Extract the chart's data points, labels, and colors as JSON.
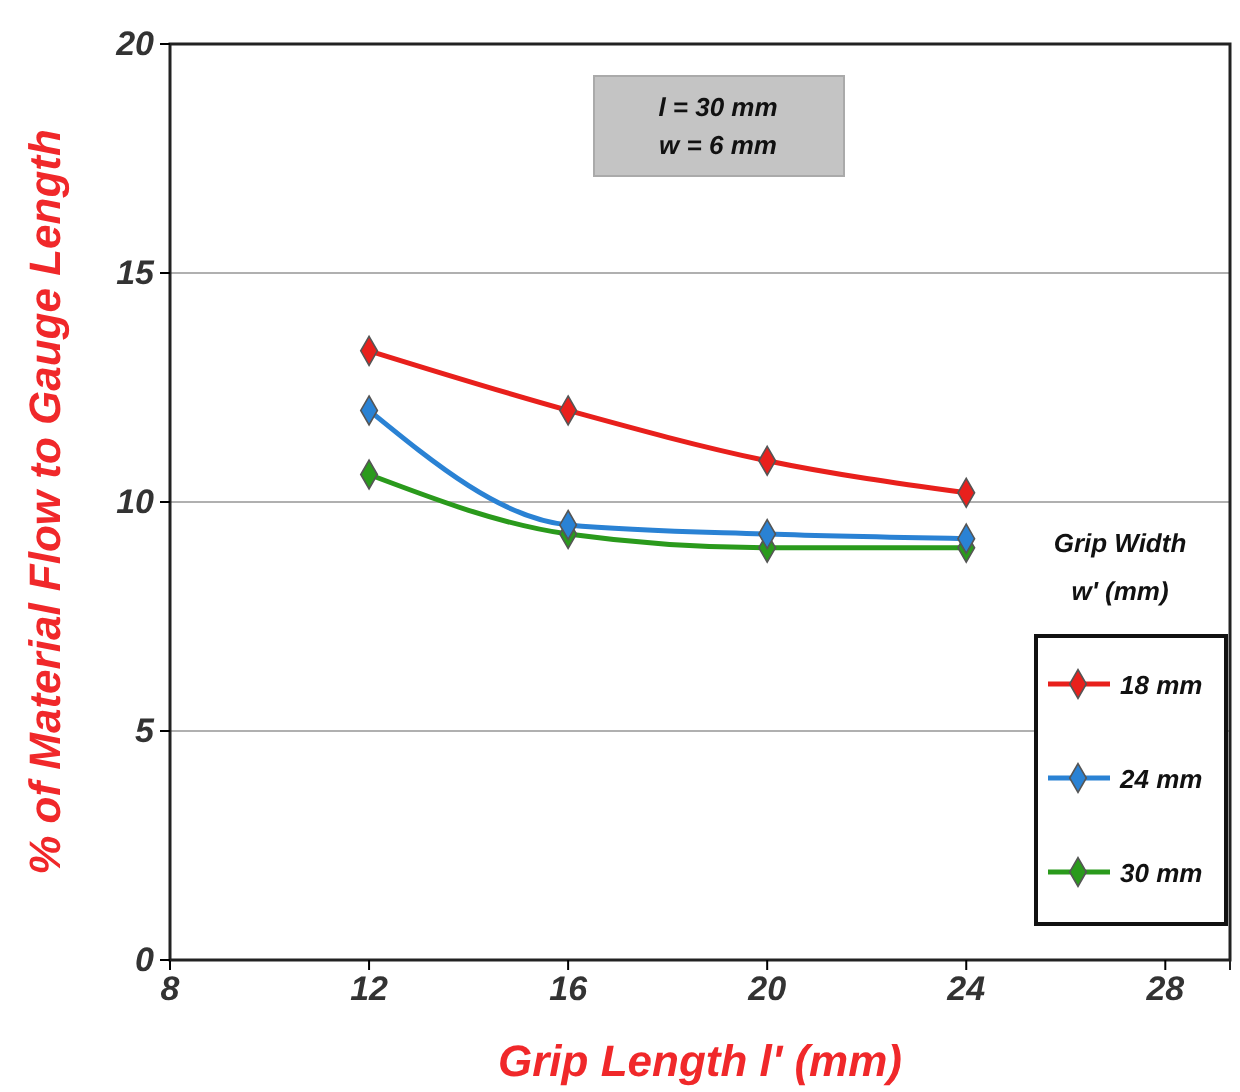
{
  "chart_data": {
    "type": "line",
    "xlabel": "Grip Length l' (mm)",
    "ylabel": "% of Material Flow to Gauge Length",
    "legend_title": "Grip Width w' (mm)",
    "x": [
      12,
      16,
      20,
      24
    ],
    "series": [
      {
        "name": "18 mm",
        "color": "#e8201c",
        "values": [
          13.3,
          12.0,
          10.9,
          10.2
        ]
      },
      {
        "name": "24 mm",
        "color": "#2a82d4",
        "values": [
          12.0,
          9.5,
          9.3,
          9.2
        ]
      },
      {
        "name": "30 mm",
        "color": "#2a9a1c",
        "values": [
          10.6,
          9.3,
          9.0,
          9.0
        ]
      }
    ],
    "xlim": [
      8,
      29.3
    ],
    "xticks": [
      8,
      12,
      16,
      20,
      24,
      28
    ],
    "ylim": [
      0,
      20
    ],
    "yticks": [
      0,
      5,
      10,
      15,
      20
    ],
    "grid": "y",
    "legend": "right",
    "marker": "diamond",
    "line_style": "solid",
    "annotations": [
      "l = 30 mm",
      "w = 6 mm"
    ]
  }
}
